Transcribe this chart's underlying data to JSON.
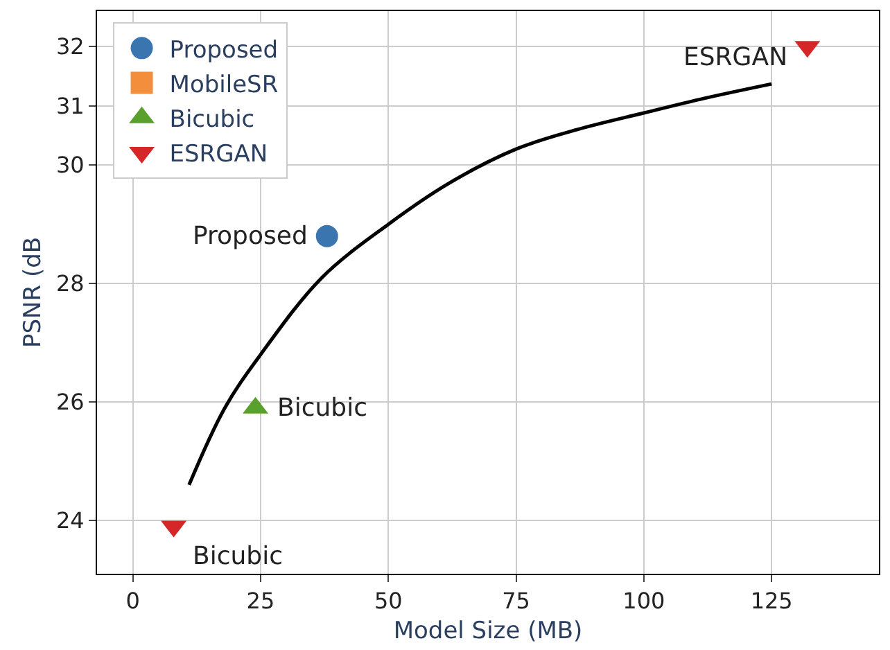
{
  "chart_data": {
    "type": "scatter",
    "xlabel": "Model Size (MB)",
    "ylabel": "PSNR (dB",
    "xlim": [
      -7,
      146
    ],
    "ylim": [
      23.1,
      32.6
    ],
    "xticks": [
      0,
      25,
      50,
      75,
      100,
      125
    ],
    "yticks": [
      24,
      26,
      28,
      30,
      31,
      32
    ],
    "grid": true,
    "legend": "top left",
    "series": [
      {
        "name": "Proposed",
        "color": "#3a75b0",
        "marker": "circle",
        "x": [
          38
        ],
        "values": [
          28.8
        ]
      },
      {
        "name": "MobileSR",
        "color": "#f28e3c",
        "marker": "square"
      },
      {
        "name": "Bicubic",
        "color": "#5aa02c",
        "marker": "triangle",
        "x": [
          24
        ],
        "values": [
          25.9
        ]
      },
      {
        "name": "ESRGAN",
        "color": "#d62728",
        "marker": "triangle-down",
        "x": [
          8,
          132
        ],
        "values": [
          23.9,
          32.0
        ]
      },
      {
        "type": "line",
        "color": "#000000",
        "marker": "none",
        "x": [
          11,
          18,
          25,
          37,
          50,
          62,
          75,
          87,
          100,
          112,
          125
        ],
        "values": [
          24.6,
          25.9,
          26.8,
          28.1,
          29.0,
          29.7,
          30.27,
          30.6,
          30.88,
          31.13,
          31.37
        ]
      }
    ],
    "annotations": [
      {
        "text": "Proposed",
        "x": 38,
        "y": 28.8
      },
      {
        "text": "Bicubic",
        "x": 24,
        "y": 25.9
      },
      {
        "text": "Bicubic",
        "x": 8,
        "y": 23.9
      },
      {
        "text": "ESRGAN",
        "x": 132,
        "y": 32.0
      }
    ]
  }
}
